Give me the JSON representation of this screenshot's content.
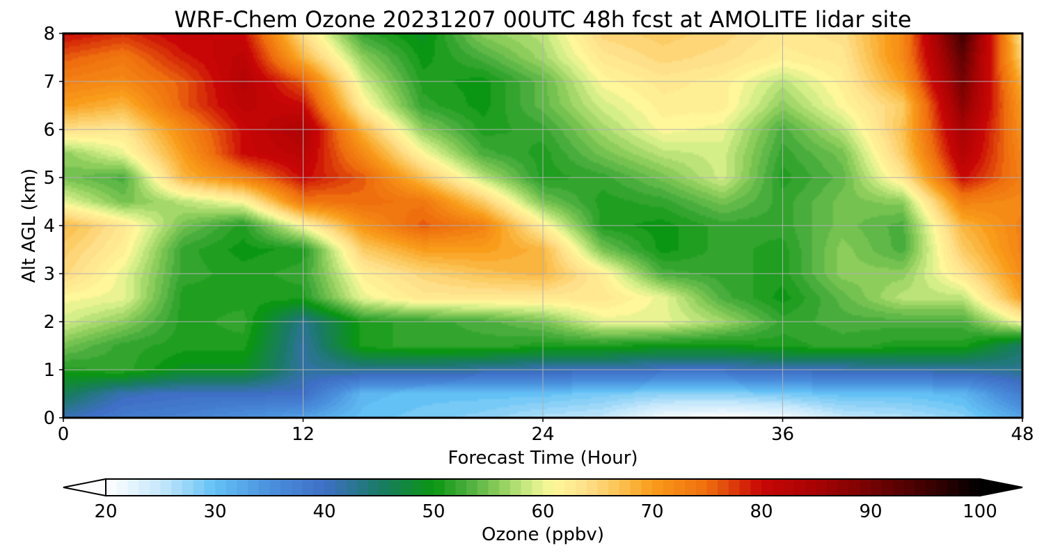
{
  "chart_data": {
    "type": "heatmap",
    "title": "WRF-Chem Ozone  20231207 00UTC 48h fcst at AMOLITE lidar site",
    "xlabel": "Forecast Time (Hour)",
    "ylabel": "Alt AGL (km)",
    "xlim": [
      0,
      48
    ],
    "ylim": [
      0,
      8
    ],
    "xticks": [
      "0",
      "12",
      "24",
      "36",
      "48"
    ],
    "yticks": [
      "0",
      "1",
      "2",
      "3",
      "4",
      "5",
      "6",
      "7",
      "8"
    ],
    "grid": true,
    "colorbar": {
      "label": "Ozone  (ppbv)",
      "range": [
        20,
        100
      ],
      "ticks": [
        "20",
        "30",
        "40",
        "50",
        "60",
        "70",
        "80",
        "90",
        "100"
      ],
      "extend": "both",
      "min_over_color": "#ffffff",
      "max_over_color": "#000000",
      "colormap": [
        [
          20,
          "#ffffff"
        ],
        [
          25,
          "#c6e8fb"
        ],
        [
          30,
          "#63c1f5"
        ],
        [
          35,
          "#4a90dd"
        ],
        [
          40,
          "#3f6fc6"
        ],
        [
          45,
          "#1a7a66"
        ],
        [
          50,
          "#0a9612"
        ],
        [
          53,
          "#48ad3c"
        ],
        [
          56,
          "#8ccd5c"
        ],
        [
          59,
          "#d4ee88"
        ],
        [
          61,
          "#fff799"
        ],
        [
          64,
          "#ffe08a"
        ],
        [
          67,
          "#fbc252"
        ],
        [
          70,
          "#f99c1a"
        ],
        [
          75,
          "#ef6e0e"
        ],
        [
          80,
          "#c80606"
        ],
        [
          85,
          "#a80303"
        ],
        [
          90,
          "#740303"
        ],
        [
          95,
          "#400101"
        ],
        [
          100,
          "#000000"
        ]
      ]
    },
    "x_hours": [
      0,
      3,
      6,
      9,
      12,
      15,
      18,
      21,
      24,
      27,
      30,
      33,
      36,
      39,
      42,
      45,
      48
    ],
    "y_km": [
      0,
      0.5,
      1,
      1.5,
      2,
      2.5,
      3,
      3.5,
      4,
      4.5,
      5,
      5.5,
      6,
      6.5,
      7,
      7.5,
      8
    ],
    "ozone_ppbv": [
      [
        41,
        38,
        37,
        35,
        33,
        30,
        29,
        28,
        26,
        25,
        21,
        20,
        21,
        25,
        26,
        28,
        33
      ],
      [
        46,
        41,
        40,
        40,
        40,
        31,
        30,
        30,
        30,
        29,
        28,
        28,
        29,
        30,
        30,
        31,
        38
      ],
      [
        51,
        52,
        49,
        49,
        42,
        43,
        43,
        42,
        41,
        41,
        40,
        40,
        41,
        41,
        42,
        42,
        43
      ],
      [
        55,
        52,
        51,
        51,
        42,
        51,
        52,
        52,
        51,
        51,
        50,
        50,
        51,
        52,
        51,
        51,
        45
      ],
      [
        59,
        56,
        51,
        52,
        43,
        51,
        52,
        53,
        55,
        60,
        60,
        57,
        52,
        53,
        53,
        53,
        61
      ],
      [
        61,
        60,
        51,
        51,
        51,
        60,
        63,
        63,
        63,
        63,
        60,
        53,
        50,
        54,
        58,
        58,
        70
      ],
      [
        65,
        60,
        52,
        51,
        52,
        62,
        65,
        67,
        68,
        62,
        53,
        52,
        51,
        56,
        56,
        63,
        72
      ],
      [
        66,
        62,
        52,
        50,
        51,
        66,
        70,
        70,
        68,
        55,
        50,
        52,
        51,
        56,
        53,
        66,
        73
      ],
      [
        68,
        63,
        55,
        51,
        61,
        71,
        76,
        73,
        62,
        51,
        50,
        52,
        52,
        55,
        53,
        68,
        73
      ],
      [
        60,
        55,
        58,
        61,
        74,
        75,
        74,
        66,
        55,
        51,
        52,
        55,
        52,
        55,
        56,
        73,
        72
      ],
      [
        55,
        53,
        68,
        73,
        80,
        76,
        67,
        58,
        51,
        52,
        55,
        59,
        51,
        54,
        63,
        80,
        73
      ],
      [
        56,
        60,
        70,
        80,
        82,
        72,
        61,
        53,
        51,
        55,
        58,
        59,
        52,
        55,
        66,
        83,
        72
      ],
      [
        64,
        63,
        72,
        80,
        84,
        68,
        56,
        51,
        52,
        57,
        61,
        60,
        53,
        58,
        67,
        85,
        71
      ],
      [
        70,
        68,
        76,
        82,
        80,
        62,
        52,
        50,
        54,
        59,
        62,
        62,
        56,
        61,
        66,
        88,
        70
      ],
      [
        73,
        72,
        76,
        83,
        76,
        59,
        51,
        50,
        54,
        61,
        63,
        62,
        58,
        62,
        70,
        90,
        68
      ],
      [
        76,
        74,
        79,
        82,
        68,
        56,
        50,
        53,
        57,
        63,
        65,
        64,
        62,
        63,
        72,
        92,
        65
      ],
      [
        80,
        78,
        81,
        80,
        64,
        52,
        49,
        56,
        58,
        65,
        66,
        65,
        63,
        64,
        72,
        95,
        63
      ]
    ]
  }
}
